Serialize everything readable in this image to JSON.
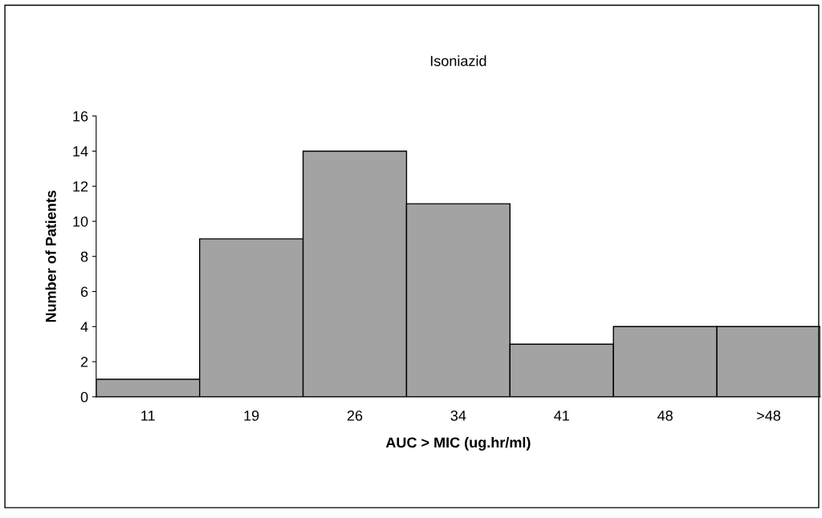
{
  "chart_data": {
    "type": "bar",
    "title": "Isoniazid",
    "xlabel": "AUC > MIC (ug.hr/ml)",
    "ylabel": "Number of Patients",
    "categories": [
      "11",
      "19",
      "26",
      "34",
      "41",
      "48",
      ">48"
    ],
    "values": [
      1,
      9,
      14,
      11,
      3,
      4,
      4
    ],
    "color": "#a3a3a3",
    "ylim": [
      0,
      16
    ],
    "yticks": [
      0,
      2,
      4,
      6,
      8,
      10,
      12,
      14,
      16
    ]
  }
}
